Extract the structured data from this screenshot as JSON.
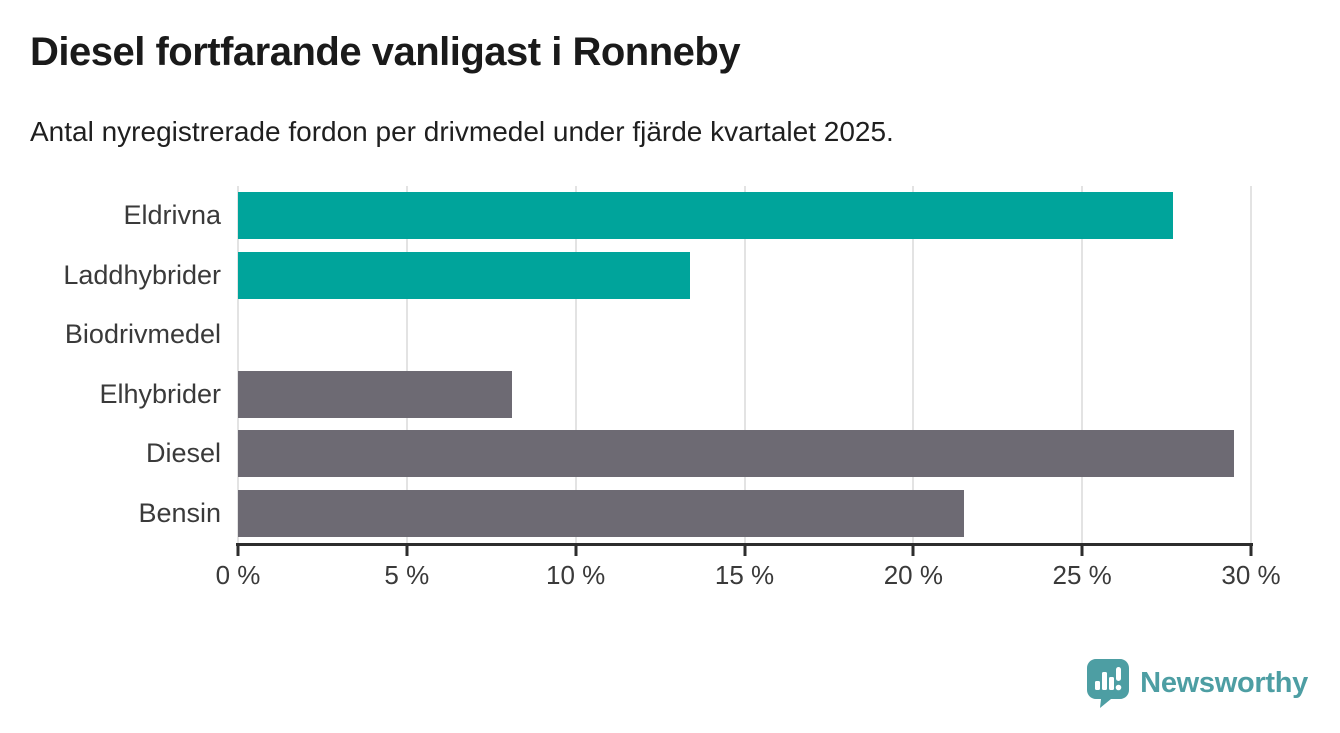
{
  "header": {
    "title": "Diesel fortfarande vanligast i Ronneby",
    "subtitle": "Antal nyregistrerade fordon per drivmedel under fjärde kvartalet 2025."
  },
  "chart_data": {
    "type": "bar",
    "orientation": "horizontal",
    "title": "Diesel fortfarande vanligast i Ronneby",
    "subtitle": "Antal nyregistrerade fordon per drivmedel under fjärde kvartalet 2025.",
    "categories": [
      "Eldrivna",
      "Laddhybrider",
      "Biodrivmedel",
      "Elhybrider",
      "Diesel",
      "Bensin"
    ],
    "values": [
      27.7,
      13.4,
      0,
      8.1,
      29.5,
      21.5
    ],
    "unit": "%",
    "bar_colors": [
      "#00a49b",
      "#00a49b",
      "#6d6a73",
      "#6d6a73",
      "#6d6a73",
      "#6d6a73"
    ],
    "x_tick_labels": [
      "0 %",
      "5 %",
      "10 %",
      "15 %",
      "20 %",
      "25 %",
      "30 %"
    ],
    "x_tick_values": [
      0,
      5,
      10,
      15,
      20,
      25,
      30
    ],
    "xlim": [
      0,
      30
    ],
    "grid": "vertical",
    "legend": "none",
    "colors": {
      "teal_bar": "#00a49b",
      "gray_bar": "#6d6a73",
      "gridline": "#e3e3e3",
      "axis": "#2d2d2d",
      "text": "#3a3a3a"
    }
  },
  "branding": {
    "logo_text": "Newsworthy",
    "logo_color": "#4d9ea3",
    "logo_icon": "bar-chart-speech-bubble"
  }
}
